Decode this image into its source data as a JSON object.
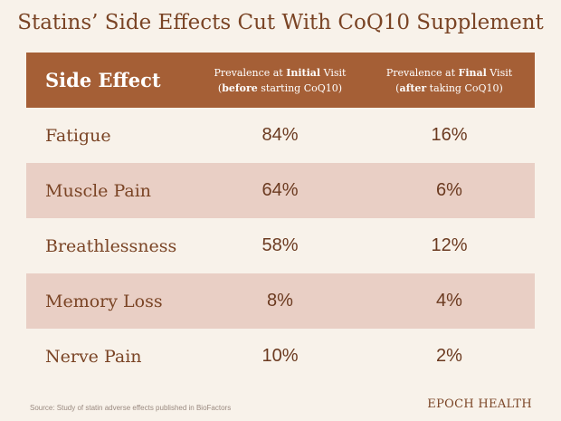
{
  "title": "Statins’ Side Effects Cut With CoQ10 Supplement",
  "table": {
    "headers": {
      "effect": "Side Effect",
      "initial": {
        "line1_pre": "Prevalence at ",
        "line1_bold": "Initial",
        "line1_post": " Visit",
        "line2_pre": "(",
        "line2_bold": "before",
        "line2_post": " starting CoQ10)"
      },
      "final": {
        "line1_pre": "Prevalence at ",
        "line1_bold": "Final",
        "line1_post": " Visit",
        "line2_pre": "(",
        "line2_bold": "after",
        "line2_post": " taking CoQ10)"
      }
    },
    "rows": [
      {
        "effect": "Fatigue",
        "initial": "84%",
        "final": "16%"
      },
      {
        "effect": "Muscle Pain",
        "initial": "64%",
        "final": "6%"
      },
      {
        "effect": "Breathlessness",
        "initial": "58%",
        "final": "12%"
      },
      {
        "effect": "Memory Loss",
        "initial": "8%",
        "final": "4%"
      },
      {
        "effect": "Nerve Pain",
        "initial": "10%",
        "final": "2%"
      }
    ]
  },
  "footer": {
    "source": "Source: Study of statin adverse effects published in BioFactors",
    "brand": "EPOCH HEALTH"
  },
  "colors": {
    "header_bg": "#a55f36",
    "stripe_bg": "#e9cfc5",
    "page_bg": "#f8f2ea",
    "text": "#7a4425"
  }
}
